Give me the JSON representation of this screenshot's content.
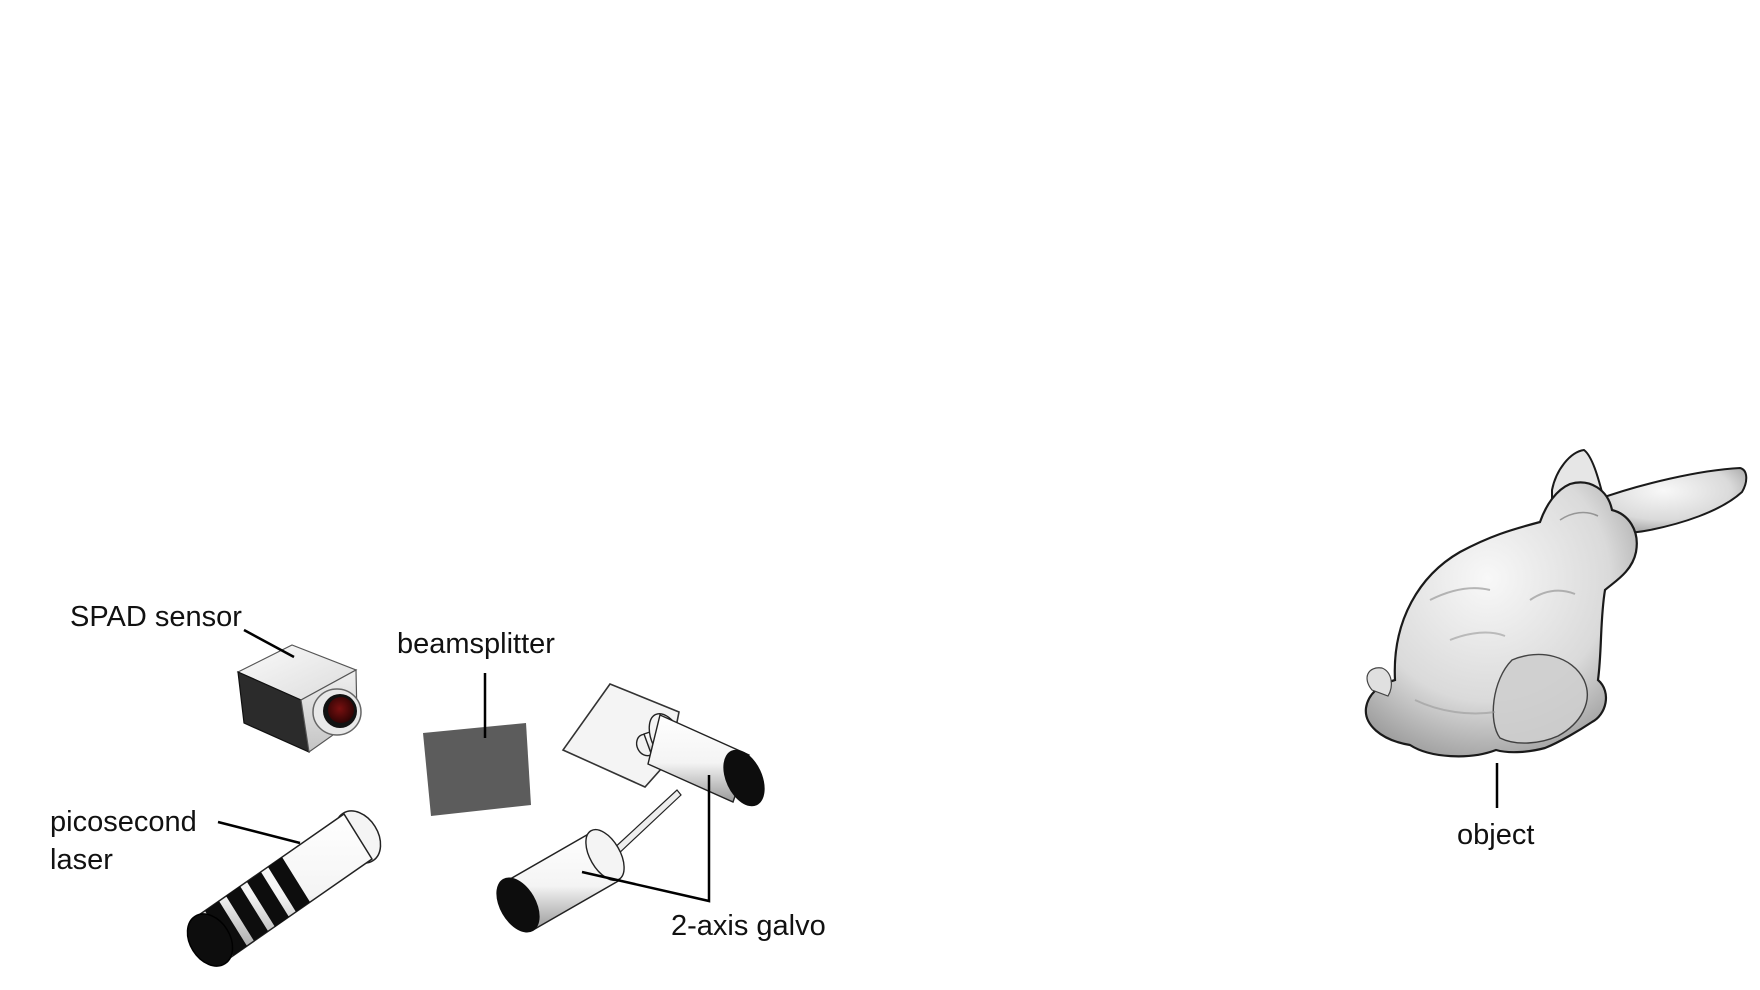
{
  "labels": {
    "spad_sensor": "SPAD sensor",
    "beamsplitter": "beamsplitter",
    "laser_line1": "picosecond",
    "laser_line2": "laser",
    "galvo": "2-axis galvo",
    "object": "object"
  },
  "colors": {
    "background": "#ffffff",
    "leader_line": "#000000",
    "text": "#111111",
    "beamsplitter": "#5c5c5c",
    "sensor_dark": "#2b2b2b",
    "sensor_lens": "#5a0a0a",
    "device_black": "#0d0d0d",
    "device_white": "#f2f2f2",
    "object_fill": "#dcdcdc"
  },
  "icons": {
    "spad_sensor": "camera-box-icon",
    "laser": "cylinder-laser-icon",
    "beamsplitter": "glass-plate-icon",
    "galvo": "galvo-mirror-icon",
    "object": "bunny-model-icon"
  }
}
